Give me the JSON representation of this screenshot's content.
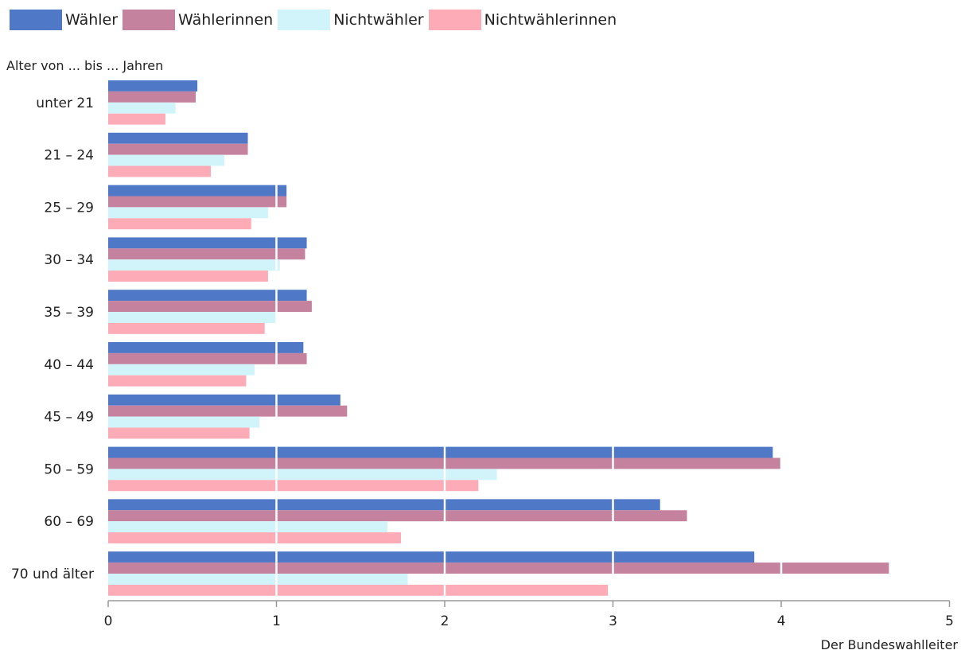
{
  "chart_data": {
    "type": "bar",
    "orientation": "horizontal",
    "ylabel": "Alter von ... bis ... Jahren",
    "source": "Der Bundeswahlleiter",
    "categories": [
      "unter 21",
      "21 – 24",
      "25 – 29",
      "30 – 34",
      "35 – 39",
      "40 – 44",
      "45 – 49",
      "50 – 59",
      "60 – 69",
      "70 und älter"
    ],
    "xlim": [
      0,
      5
    ],
    "xticks": [
      "0",
      "1",
      "2",
      "3",
      "4",
      "5"
    ],
    "grid": true,
    "legend_position": "top-left",
    "series": [
      {
        "name": "Wähler",
        "color": "#4f78c7",
        "values": [
          0.53,
          0.83,
          1.06,
          1.18,
          1.18,
          1.16,
          1.38,
          3.95,
          3.28,
          3.84
        ]
      },
      {
        "name": "Wählerinnen",
        "color": "#c4829f",
        "values": [
          0.52,
          0.83,
          1.06,
          1.17,
          1.21,
          1.18,
          1.42,
          4.0,
          3.44,
          4.64
        ]
      },
      {
        "name": "Nichtwähler",
        "color": "#d1f4fb",
        "values": [
          0.4,
          0.69,
          0.95,
          1.02,
          1.0,
          0.87,
          0.9,
          2.31,
          1.66,
          1.78
        ]
      },
      {
        "name": "Nichtwählerinnen",
        "color": "#fdabb6",
        "values": [
          0.34,
          0.61,
          0.85,
          0.95,
          0.93,
          0.82,
          0.84,
          2.2,
          1.74,
          2.97
        ]
      }
    ]
  }
}
